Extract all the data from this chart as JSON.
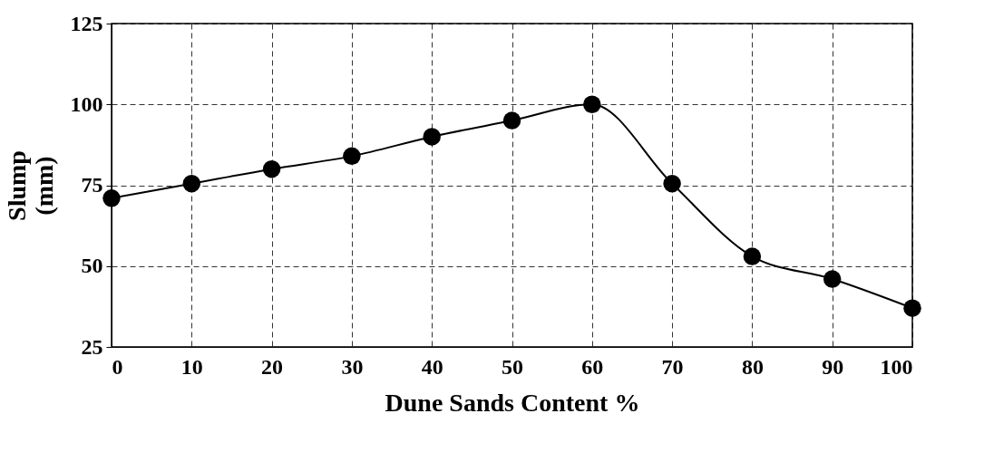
{
  "chart_data": {
    "type": "line",
    "xlabel": "Dune Sands Content %",
    "ylabel": "Slump (mm)",
    "x": [
      0,
      10,
      20,
      30,
      40,
      50,
      60,
      70,
      80,
      90,
      100
    ],
    "series": [
      {
        "color": "#000000",
        "values": [
          71,
          75.5,
          80,
          84,
          90,
          95,
          100,
          75.5,
          53,
          46,
          37
        ]
      }
    ],
    "xlim": [
      0,
      100
    ],
    "xticks": [
      0,
      10,
      20,
      30,
      40,
      50,
      60,
      70,
      80,
      90,
      100
    ],
    "ylim": [
      25,
      125
    ],
    "yticks": [
      25,
      50,
      75,
      100,
      125
    ],
    "grid": true,
    "marker": "circle",
    "line_style": "solid"
  }
}
